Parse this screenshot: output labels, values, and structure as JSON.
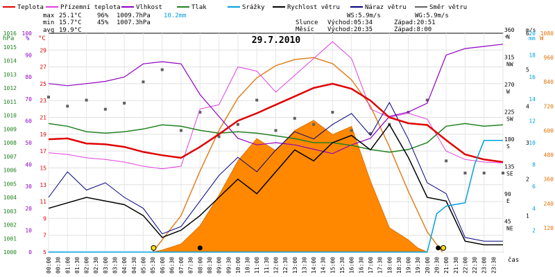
{
  "chart_data": {
    "type": "line",
    "title": "29.7.2010",
    "legend": [
      {
        "key": "teplota",
        "label": "Teplota",
        "color": "#e00000"
      },
      {
        "key": "prizemni",
        "label": "Přízemní teplota",
        "color": "#e040e0"
      },
      {
        "key": "vlhkost",
        "label": "Vlhkost",
        "color": "#9000c0"
      },
      {
        "key": "tlak",
        "label": "Tlak",
        "color": "#208020"
      },
      {
        "key": "srazky",
        "label": "Srážky",
        "color": "#00a0e0"
      },
      {
        "key": "rychlost",
        "label": "Rychlost větru",
        "color": "#000000"
      },
      {
        "key": "naraz",
        "label": "Náraz větru",
        "color": "#000080"
      },
      {
        "key": "smer",
        "label": "Směr větru",
        "color": "#606060"
      }
    ],
    "stats": {
      "max": {
        "label": "max",
        "temp": "25.1°C",
        "hum": "96%",
        "press": "1009.7hPa",
        "rain": "10.2mm"
      },
      "min": {
        "label": "min",
        "temp": "15.7°C",
        "hum": "45%",
        "press": "1007.3hPa"
      },
      "avg": {
        "label": "avg",
        "temp": "19.9°C"
      }
    },
    "info": {
      "ws": "WS:5.9m/s",
      "wg": "WG:5.9m/s",
      "sun_label": "Slunce",
      "sun_rise": "Východ:05:34",
      "sun_set": "Západ:20:51",
      "moon_label": "Měsíc",
      "moon_rise": "Východ:20:35",
      "moon_set": "Západ:8:00"
    },
    "axis_units": {
      "hpa": "hPa",
      "pct": "%",
      "degc": "°C",
      "deg": "°",
      "ms": "m/s",
      "mm": "mm",
      "w": "W",
      "x": "čas"
    },
    "axes": {
      "hpa": {
        "min": 1000,
        "max": 1016,
        "ticks": [
          1000,
          1001,
          1002,
          1003,
          1004,
          1005,
          1006,
          1007,
          1008,
          1009,
          1010,
          1011,
          1012,
          1013,
          1014,
          1015,
          1016
        ]
      },
      "pct": {
        "min": 0,
        "max": 100,
        "ticks": [
          0,
          10,
          20,
          30,
          40,
          50,
          60,
          70,
          80,
          90,
          100
        ]
      },
      "degc": {
        "min": 5,
        "max": 31,
        "ticks": [
          5,
          7,
          9,
          11,
          13,
          15,
          17,
          19,
          21,
          23,
          25,
          27,
          29
        ]
      },
      "dir": {
        "min": 0,
        "max": 360,
        "ticks": [
          {
            "deg": "45",
            "lab": "NE"
          },
          {
            "deg": "90",
            "lab": "E"
          },
          {
            "deg": "135",
            "lab": "SE"
          },
          {
            "deg": "180",
            "lab": "S"
          },
          {
            "deg": "225",
            "lab": "SW"
          },
          {
            "deg": "270",
            "lab": "W"
          },
          {
            "deg": "315",
            "lab": "NW"
          },
          {
            "deg": "360",
            "lab": "N"
          }
        ]
      },
      "ms": {
        "min": 0,
        "max": 6,
        "ticks": [
          1,
          2,
          3,
          4,
          5,
          6
        ]
      },
      "mm": {
        "min": 0,
        "max": 20,
        "ticks": [
          2,
          4,
          6,
          8,
          10,
          12,
          14,
          16,
          18,
          20
        ]
      },
      "w": {
        "min": 0,
        "max": 1080,
        "ticks": [
          120,
          240,
          360,
          480,
          600,
          720,
          840,
          960,
          1080
        ]
      }
    },
    "x_ticks": [
      "00:00",
      "00:30",
      "01:00",
      "01:30",
      "02:00",
      "02:30",
      "03:00",
      "03:30",
      "04:00",
      "04:30",
      "05:00",
      "05:30",
      "06:00",
      "06:30",
      "07:00",
      "07:30",
      "08:00",
      "08:30",
      "09:00",
      "09:30",
      "10:00",
      "10:30",
      "11:00",
      "11:30",
      "12:00",
      "12:30",
      "13:00",
      "13:30",
      "14:00",
      "14:30",
      "15:00",
      "15:30",
      "16:00",
      "16:30",
      "17:00",
      "17:30",
      "18:00",
      "18:30",
      "19:00",
      "19:30",
      "20:00",
      "20:30",
      "21:00",
      "21:30",
      "22:00",
      "22:30",
      "23:00",
      "23:30"
    ],
    "series": [
      {
        "key": "teplota",
        "name": "Teplota",
        "unit": "°C",
        "points": [
          [
            0,
            18.4
          ],
          [
            1,
            18.5
          ],
          [
            2,
            17.9
          ],
          [
            3,
            17.8
          ],
          [
            4,
            17.5
          ],
          [
            5,
            16.9
          ],
          [
            6,
            16.5
          ],
          [
            7,
            16.2
          ],
          [
            8,
            17.5
          ],
          [
            9,
            19.0
          ],
          [
            10,
            20.6
          ],
          [
            11,
            21.5
          ],
          [
            12,
            22.5
          ],
          [
            13,
            23.5
          ],
          [
            14,
            24.5
          ],
          [
            15,
            25.0
          ],
          [
            16,
            24.4
          ],
          [
            17,
            23.0
          ],
          [
            18,
            21.0
          ],
          [
            19,
            20.3
          ],
          [
            20,
            20.1
          ],
          [
            21,
            18.3
          ],
          [
            22,
            16.6
          ],
          [
            23,
            16.0
          ],
          [
            24,
            15.7
          ]
        ]
      },
      {
        "key": "prizemni",
        "name": "Přízemní teplota",
        "unit": "°C",
        "points": [
          [
            0,
            16.8
          ],
          [
            1,
            16.6
          ],
          [
            2,
            16.2
          ],
          [
            3,
            16.0
          ],
          [
            4,
            15.7
          ],
          [
            5,
            15.2
          ],
          [
            6,
            14.9
          ],
          [
            7,
            15.2
          ],
          [
            8,
            22.0
          ],
          [
            9,
            22.5
          ],
          [
            10,
            27.0
          ],
          [
            11,
            26.5
          ],
          [
            12,
            24.0
          ],
          [
            13,
            26.0
          ],
          [
            14,
            28.0
          ],
          [
            15,
            30.0
          ],
          [
            16,
            28.0
          ],
          [
            17,
            22.0
          ],
          [
            18,
            21.0
          ],
          [
            19,
            21.5
          ],
          [
            20,
            20.8
          ],
          [
            21,
            17.0
          ],
          [
            22,
            16.0
          ],
          [
            23,
            15.7
          ],
          [
            24,
            15.6
          ]
        ]
      },
      {
        "key": "vlhkost",
        "name": "Vlhkost",
        "unit": "%",
        "points": [
          [
            0,
            77
          ],
          [
            1,
            76
          ],
          [
            2,
            77
          ],
          [
            3,
            78
          ],
          [
            4,
            80
          ],
          [
            5,
            86
          ],
          [
            6,
            87
          ],
          [
            7,
            86
          ],
          [
            8,
            72
          ],
          [
            9,
            62
          ],
          [
            10,
            52
          ],
          [
            11,
            49
          ],
          [
            12,
            50
          ],
          [
            13,
            49
          ],
          [
            14,
            47
          ],
          [
            15,
            45
          ],
          [
            16,
            49
          ],
          [
            17,
            52
          ],
          [
            18,
            62
          ],
          [
            19,
            64
          ],
          [
            20,
            68
          ],
          [
            21,
            90
          ],
          [
            22,
            93
          ],
          [
            23,
            94
          ],
          [
            24,
            95
          ]
        ]
      },
      {
        "key": "tlak",
        "name": "Tlak",
        "unit": "hPa",
        "points": [
          [
            0,
            1009.4
          ],
          [
            1,
            1009.2
          ],
          [
            2,
            1008.8
          ],
          [
            3,
            1008.7
          ],
          [
            4,
            1008.8
          ],
          [
            5,
            1009.0
          ],
          [
            6,
            1009.3
          ],
          [
            7,
            1009.2
          ],
          [
            8,
            1008.9
          ],
          [
            9,
            1008.7
          ],
          [
            10,
            1008.8
          ],
          [
            11,
            1008.7
          ],
          [
            12,
            1008.5
          ],
          [
            13,
            1008.3
          ],
          [
            14,
            1008.0
          ],
          [
            15,
            1008.0
          ],
          [
            16,
            1007.8
          ],
          [
            17,
            1007.5
          ],
          [
            18,
            1007.3
          ],
          [
            19,
            1007.5
          ],
          [
            20,
            1008.0
          ],
          [
            21,
            1009.2
          ],
          [
            22,
            1009.4
          ],
          [
            23,
            1009.2
          ],
          [
            24,
            1009.3
          ]
        ]
      },
      {
        "key": "srazky",
        "name": "Srážky",
        "unit": "mm",
        "points": [
          [
            0,
            0
          ],
          [
            20,
            0
          ],
          [
            20.5,
            3.5
          ],
          [
            21,
            4.2
          ],
          [
            22,
            4.5
          ],
          [
            22.5,
            8.0
          ],
          [
            23,
            10.2
          ],
          [
            24,
            10.2
          ]
        ]
      },
      {
        "key": "rychlost",
        "name": "Rychlost větru",
        "unit": "m/s",
        "points": [
          [
            0,
            1.2
          ],
          [
            2,
            1.5
          ],
          [
            4,
            1.3
          ],
          [
            5,
            1.0
          ],
          [
            6,
            0.4
          ],
          [
            7,
            0.6
          ],
          [
            8,
            1.0
          ],
          [
            9,
            1.5
          ],
          [
            10,
            2.0
          ],
          [
            11,
            1.6
          ],
          [
            12,
            2.2
          ],
          [
            13,
            2.8
          ],
          [
            14,
            2.5
          ],
          [
            15,
            3.0
          ],
          [
            16,
            3.2
          ],
          [
            17,
            2.8
          ],
          [
            18,
            3.5
          ],
          [
            19,
            2.6
          ],
          [
            20,
            1.5
          ],
          [
            21,
            1.4
          ],
          [
            22,
            0.3
          ],
          [
            23,
            0.2
          ],
          [
            24,
            0.2
          ]
        ]
      },
      {
        "key": "naraz",
        "name": "Náraz větru",
        "unit": "m/s",
        "points": [
          [
            0,
            1.5
          ],
          [
            1,
            2.2
          ],
          [
            2,
            1.7
          ],
          [
            3,
            1.9
          ],
          [
            4,
            1.5
          ],
          [
            5,
            1.2
          ],
          [
            6,
            0.5
          ],
          [
            7,
            0.7
          ],
          [
            8,
            1.4
          ],
          [
            9,
            2.1
          ],
          [
            10,
            2.6
          ],
          [
            11,
            2.2
          ],
          [
            12,
            2.8
          ],
          [
            13,
            3.3
          ],
          [
            14,
            3.1
          ],
          [
            15,
            3.5
          ],
          [
            16,
            3.8
          ],
          [
            17,
            3.2
          ],
          [
            18,
            4.1
          ],
          [
            19,
            3.1
          ],
          [
            20,
            1.9
          ],
          [
            21,
            1.6
          ],
          [
            22,
            0.4
          ],
          [
            23,
            0.3
          ],
          [
            24,
            0.3
          ]
        ]
      },
      {
        "key": "smer",
        "name": "Směr větru",
        "unit": "°",
        "points": [
          [
            0,
            255
          ],
          [
            1,
            240
          ],
          [
            2,
            250
          ],
          [
            3,
            235
          ],
          [
            4,
            245
          ],
          [
            5,
            280
          ],
          [
            6,
            300
          ],
          [
            7,
            200
          ],
          [
            8,
            230
          ],
          [
            9,
            190
          ],
          [
            10,
            210
          ],
          [
            11,
            250
          ],
          [
            12,
            200
          ],
          [
            13,
            220
          ],
          [
            14,
            210
          ],
          [
            15,
            230
          ],
          [
            16,
            200
          ],
          [
            17,
            195
          ],
          [
            18,
            210
          ],
          [
            19,
            230
          ],
          [
            20,
            250
          ],
          [
            21,
            150
          ],
          [
            22,
            130
          ],
          [
            23,
            130
          ],
          [
            24,
            130
          ]
        ]
      },
      {
        "key": "zareni",
        "name": "",
        "unit": "W",
        "points": [
          [
            5.5,
            0
          ],
          [
            6,
            10
          ],
          [
            7,
            40
          ],
          [
            8,
            130
          ],
          [
            9,
            280
          ],
          [
            10,
            450
          ],
          [
            11,
            560
          ],
          [
            12,
            500
          ],
          [
            13,
            600
          ],
          [
            14,
            650
          ],
          [
            15,
            580
          ],
          [
            16,
            620
          ],
          [
            17,
            350
          ],
          [
            18,
            120
          ],
          [
            19,
            60
          ],
          [
            19.5,
            20
          ],
          [
            20,
            0
          ]
        ]
      },
      {
        "key": "zareni_teor",
        "name": "",
        "unit": "W",
        "points": [
          [
            5.5,
            0
          ],
          [
            7,
            180
          ],
          [
            8,
            400
          ],
          [
            9,
            600
          ],
          [
            10,
            760
          ],
          [
            11,
            860
          ],
          [
            12,
            920
          ],
          [
            13,
            950
          ],
          [
            14,
            960
          ],
          [
            15,
            930
          ],
          [
            16,
            850
          ],
          [
            17,
            720
          ],
          [
            18,
            520
          ],
          [
            19,
            300
          ],
          [
            20,
            100
          ],
          [
            20.8,
            0
          ]
        ]
      }
    ]
  }
}
